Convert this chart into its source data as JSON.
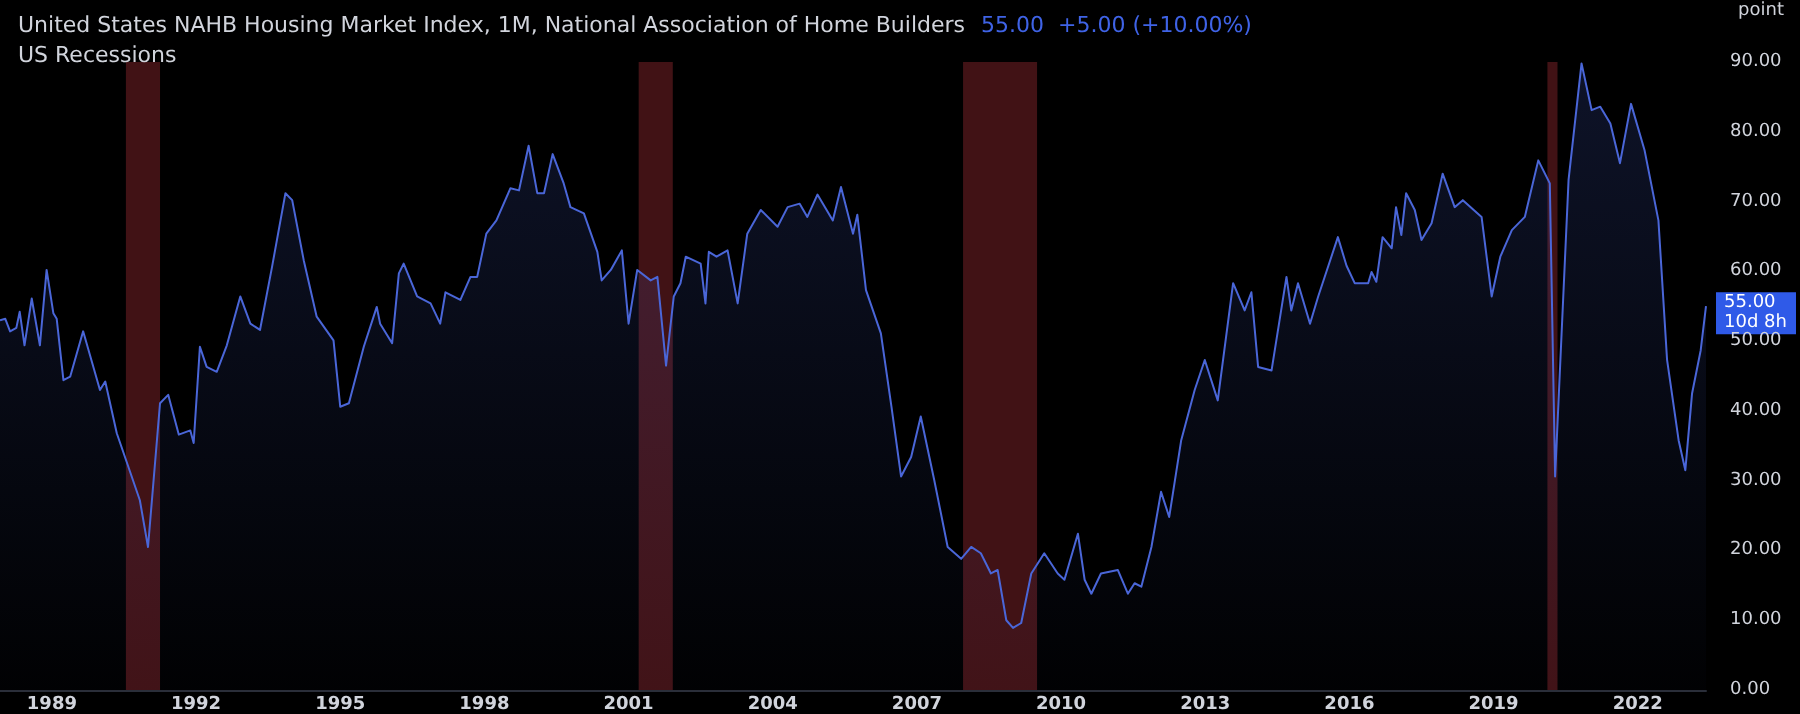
{
  "chart_data": {
    "type": "area",
    "title": "United States NAHB Housing Market Index, 1M, National Association of Home Builders",
    "subtitle": "55.00  +5.00 (+10.00%)",
    "ylabel": "point",
    "annotations": [
      {
        "text": "55.00",
        "x": 2023.42,
        "y": 55
      },
      "10d 8h",
      "US Recessions"
    ],
    "series": [
      {
        "color": "#4a66d8",
        "x": [
          1987.92,
          1988.03,
          1988.13,
          1988.26,
          1988.33,
          1988.43,
          1988.58,
          1988.75,
          1988.89,
          1989.03,
          1989.1,
          1989.24,
          1989.38,
          1989.65,
          1990.0,
          1990.11,
          1990.35,
          1990.63,
          1990.83,
          1991.0,
          1991.25,
          1991.42,
          1991.64,
          1991.88,
          1991.95,
          1992.08,
          1992.22,
          1992.43,
          1992.64,
          1992.92,
          1993.13,
          1993.33,
          1993.58,
          1993.86,
          1994.0,
          1994.24,
          1994.51,
          1994.86,
          1995.0,
          1995.18,
          1995.49,
          1995.76,
          1995.83,
          1996.08,
          1996.22,
          1996.32,
          1996.6,
          1996.88,
          1997.08,
          1997.19,
          1997.5,
          1997.71,
          1997.85,
          1998.04,
          1998.25,
          1998.54,
          1998.72,
          1998.92,
          1999.1,
          1999.24,
          1999.42,
          1999.65,
          1999.79,
          2000.07,
          2000.35,
          2000.44,
          2000.63,
          2000.86,
          2001.0,
          2001.18,
          2001.46,
          2001.6,
          2001.78,
          2001.94,
          2002.08,
          2002.19,
          2002.5,
          2002.6,
          2002.67,
          2002.83,
          2003.06,
          2003.27,
          2003.47,
          2003.75,
          2004.1,
          2004.31,
          2004.56,
          2004.72,
          2004.93,
          2005.25,
          2005.42,
          2005.67,
          2005.76,
          2005.94,
          2006.25,
          2006.47,
          2006.67,
          2006.88,
          2007.08,
          2007.36,
          2007.64,
          2007.92,
          2008.13,
          2008.33,
          2008.54,
          2008.68,
          2008.86,
          2009.0,
          2009.17,
          2009.38,
          2009.65,
          2009.93,
          2010.07,
          2010.35,
          2010.49,
          2010.63,
          2010.83,
          2011.18,
          2011.39,
          2011.53,
          2011.67,
          2011.88,
          2012.08,
          2012.25,
          2012.5,
          2012.78,
          2012.99,
          2013.26,
          2013.58,
          2013.82,
          2013.96,
          2014.1,
          2014.38,
          2014.69,
          2014.79,
          2014.93,
          2015.18,
          2015.35,
          2015.76,
          2015.94,
          2016.11,
          2016.39,
          2016.46,
          2016.56,
          2016.69,
          2016.88,
          2016.97,
          2017.08,
          2017.18,
          2017.36,
          2017.5,
          2017.71,
          2017.94,
          2018.19,
          2018.36,
          2018.75,
          2018.96,
          2019.14,
          2019.38,
          2019.65,
          2019.93,
          2020.17,
          2020.28,
          2020.56,
          2020.83,
          2021.04,
          2021.22,
          2021.43,
          2021.63,
          2021.86,
          2022.14,
          2022.43,
          2022.61,
          2022.85,
          2022.99,
          2023.13,
          2023.31,
          2023.42
        ],
        "values": [
          53.0,
          53.2,
          51.4,
          51.9,
          54.2,
          49.4,
          56.1,
          49.4,
          60.2,
          54.0,
          53.2,
          44.4,
          44.9,
          51.4,
          43.0,
          44.2,
          36.8,
          31.2,
          27.2,
          20.5,
          41.1,
          42.3,
          36.6,
          37.2,
          35.4,
          49.2,
          46.3,
          45.6,
          49.4,
          56.4,
          52.5,
          51.6,
          60.6,
          71.2,
          70.2,
          61.6,
          53.5,
          50.1,
          40.6,
          41.1,
          49.2,
          54.9,
          52.5,
          49.7,
          59.7,
          61.1,
          56.4,
          55.4,
          52.5,
          57.0,
          55.9,
          59.2,
          59.2,
          65.4,
          67.3,
          71.9,
          71.6,
          78.0,
          71.2,
          71.2,
          76.8,
          72.6,
          69.2,
          68.3,
          62.8,
          58.7,
          60.2,
          63.0,
          52.5,
          60.2,
          58.7,
          59.2,
          46.5,
          56.4,
          58.3,
          62.1,
          61.1,
          55.4,
          62.8,
          62.1,
          63.0,
          55.4,
          65.4,
          68.8,
          66.4,
          69.2,
          69.7,
          67.8,
          71.0,
          67.3,
          72.1,
          65.4,
          68.1,
          57.3,
          51.1,
          40.6,
          30.6,
          33.4,
          39.2,
          30.1,
          20.5,
          18.8,
          20.5,
          19.6,
          16.7,
          17.2,
          10.0,
          8.9,
          9.6,
          16.7,
          19.6,
          16.7,
          15.8,
          22.4,
          15.8,
          13.8,
          16.7,
          17.2,
          13.8,
          15.3,
          14.8,
          20.5,
          28.4,
          24.8,
          35.8,
          43.0,
          47.3,
          41.5,
          58.3,
          54.4,
          57.0,
          46.3,
          45.8,
          59.2,
          54.4,
          58.3,
          52.5,
          56.4,
          64.9,
          60.8,
          58.3,
          58.3,
          59.9,
          58.5,
          64.9,
          63.3,
          69.2,
          65.2,
          71.2,
          68.8,
          64.5,
          66.9,
          74.0,
          69.2,
          70.2,
          67.8,
          56.4,
          62.1,
          65.9,
          67.8,
          75.9,
          72.6,
          30.6,
          73.1,
          89.8,
          83.1,
          83.6,
          81.2,
          75.5,
          84.0,
          77.4,
          67.3,
          47.3,
          35.8,
          31.5,
          42.5,
          48.7,
          55.0
        ]
      }
    ],
    "bands": [
      {
        "axis": "x",
        "from": 1990.54,
        "to": 1991.25,
        "color": "#4c1519"
      },
      {
        "axis": "x",
        "from": 2001.21,
        "to": 2001.92,
        "color": "#4c1519"
      },
      {
        "axis": "x",
        "from": 2007.96,
        "to": 2009.5,
        "color": "#4c1519"
      },
      {
        "axis": "x",
        "from": 2020.12,
        "to": 2020.33,
        "color": "#4c1519"
      }
    ],
    "xlim": [
      1987.92,
      2023.42
    ],
    "xticks": [
      1989,
      1992,
      1995,
      1998,
      2001,
      2004,
      2007,
      2010,
      2013,
      2016,
      2019,
      2022
    ],
    "ylim": [
      0,
      90
    ],
    "yticks": [
      {
        "value": 0,
        "label": "0.00"
      },
      {
        "value": 10,
        "label": "10.00"
      },
      {
        "value": 20,
        "label": "20.00"
      },
      {
        "value": 30,
        "label": "30.00"
      },
      {
        "value": 40,
        "label": "40.00"
      },
      {
        "value": 50,
        "label": "50.00"
      },
      {
        "value": 60,
        "label": "60.00"
      },
      {
        "value": 70,
        "label": "70.00"
      },
      {
        "value": 80,
        "label": "80.00"
      },
      {
        "value": 90,
        "label": "90.00"
      }
    ],
    "grid": false
  }
}
